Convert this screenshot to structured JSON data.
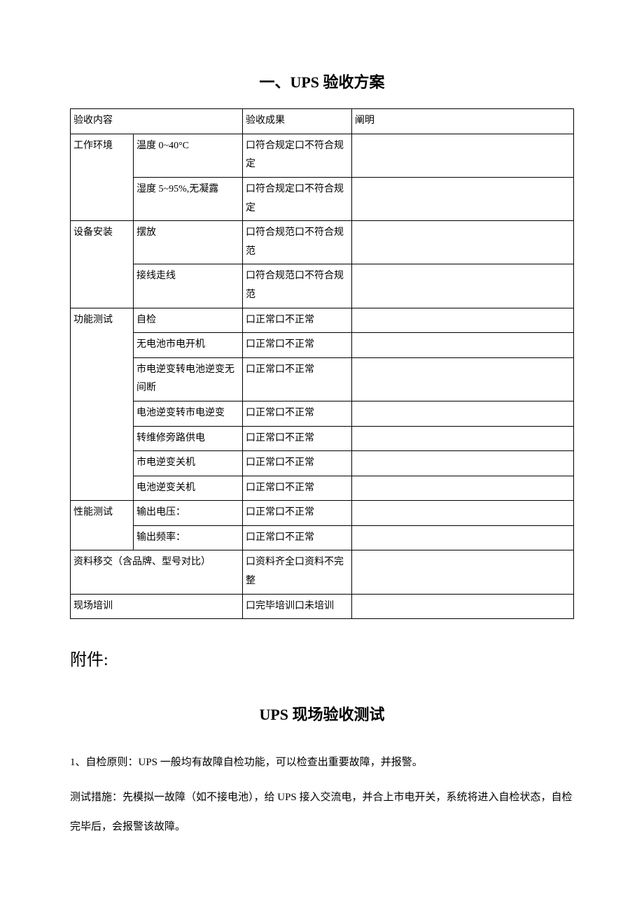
{
  "doc": {
    "title": "一、UPS 验收方案",
    "table": {
      "headers": {
        "content": "验收内容",
        "result": "验收成果",
        "note": "阐明"
      },
      "rows": [
        {
          "cat": "工作环境",
          "cat_rowspan": 2,
          "item": "温度 0~40°C",
          "result": "口符合规定口不符合规定",
          "note": ""
        },
        {
          "item": "湿度 5~95%,无凝露",
          "result": "口符合规定口不符合规定",
          "note": ""
        },
        {
          "cat": "设备安装",
          "cat_rowspan": 2,
          "item": "摆放",
          "result": "口符合规范口不符合规范",
          "note": ""
        },
        {
          "item": "接线走线",
          "result": "口符合规范口不符合规范",
          "note": ""
        },
        {
          "cat": "功能测试",
          "cat_rowspan": 7,
          "item": "自检",
          "result": "口正常口不正常",
          "note": ""
        },
        {
          "item": "无电池市电开机",
          "result": "口正常口不正常",
          "note": ""
        },
        {
          "item": "市电逆变转电池逆变无间断",
          "result": "口正常口不正常",
          "note": ""
        },
        {
          "item": "电池逆变转市电逆变",
          "result": "口正常口不正常",
          "note": ""
        },
        {
          "item": "转维修旁路供电",
          "result": "口正常口不正常",
          "note": ""
        },
        {
          "item": "市电逆变关机",
          "result": "口正常口不正常",
          "note": ""
        },
        {
          "item": "电池逆变关机",
          "result": "口正常口不正常",
          "note": ""
        },
        {
          "cat": "性能测试",
          "cat_rowspan": 2,
          "item": "输出电压：",
          "result": "口正常口不正常",
          "note": ""
        },
        {
          "item": "输出频率：",
          "result": "口正常口不正常",
          "note": ""
        },
        {
          "wide": "资料移交（含品牌、型号对比）",
          "result": "口资料齐全口资料不完整",
          "note": ""
        },
        {
          "wide": "现场培训",
          "result": "口完毕培训口未培训",
          "note": ""
        }
      ]
    },
    "attachment": "附件:",
    "subtitle": "UPS 现场验收测试",
    "p1": "1、自检原则：UPS 一般均有故障自检功能，可以检查出重要故障，并报警。",
    "p2": "测试措施：先模拟一故障（如不接电池），给 UPS 接入交流电，并合上市电开关，系统将进入自检状态，自检完毕后，会报警该故障。"
  }
}
